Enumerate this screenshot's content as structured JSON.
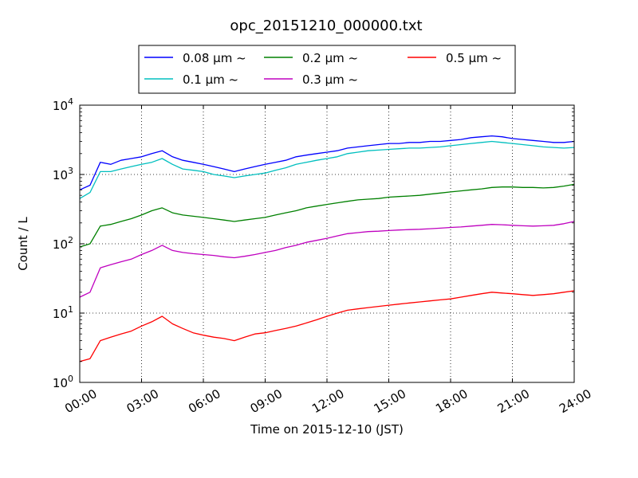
{
  "chart_data": {
    "type": "line",
    "title": "opc_20151210_000000.txt",
    "xlabel": "Time on 2015-12-10 (JST)",
    "ylabel": "Count / L",
    "yscale": "log",
    "ylim": [
      1,
      10000
    ],
    "xlim": [
      "00:00",
      "24:00"
    ],
    "grid": true,
    "legend_position": "top, above plot",
    "x_ticks": [
      "00:00",
      "03:00",
      "06:00",
      "09:00",
      "12:00",
      "15:00",
      "18:00",
      "21:00",
      "24:00"
    ],
    "y_ticks": [
      {
        "base": "10",
        "exp": "0"
      },
      {
        "base": "10",
        "exp": "1"
      },
      {
        "base": "10",
        "exp": "2"
      },
      {
        "base": "10",
        "exp": "3"
      },
      {
        "base": "10",
        "exp": "4"
      }
    ],
    "x_hours": [
      0,
      0.5,
      1,
      1.5,
      2,
      2.5,
      3,
      3.5,
      4,
      4.5,
      5,
      5.5,
      6,
      6.5,
      7,
      7.5,
      8,
      8.5,
      9,
      9.5,
      10,
      10.5,
      11,
      11.5,
      12,
      12.5,
      13,
      13.5,
      14,
      14.5,
      15,
      15.5,
      16,
      16.5,
      17,
      17.5,
      18,
      18.5,
      19,
      19.5,
      20,
      20.5,
      21,
      21.5,
      22,
      22.5,
      23,
      23.5,
      24
    ],
    "series": [
      {
        "name": "0.08 μm ~",
        "color": "#0000ff",
        "values": [
          600,
          700,
          1500,
          1400,
          1600,
          1700,
          1800,
          2000,
          2200,
          1800,
          1600,
          1500,
          1400,
          1300,
          1200,
          1100,
          1200,
          1300,
          1400,
          1500,
          1600,
          1800,
          1900,
          2000,
          2100,
          2200,
          2400,
          2500,
          2600,
          2700,
          2800,
          2800,
          2900,
          2900,
          3000,
          3000,
          3100,
          3200,
          3400,
          3500,
          3600,
          3500,
          3300,
          3200,
          3100,
          3000,
          2900,
          2900,
          3000
        ]
      },
      {
        "name": "0.1 μm ~",
        "color": "#00bfbf",
        "values": [
          450,
          550,
          1100,
          1100,
          1200,
          1300,
          1400,
          1500,
          1700,
          1400,
          1200,
          1150,
          1100,
          1000,
          950,
          900,
          950,
          1000,
          1050,
          1150,
          1250,
          1400,
          1500,
          1600,
          1700,
          1800,
          2000,
          2100,
          2200,
          2250,
          2300,
          2350,
          2400,
          2400,
          2450,
          2500,
          2600,
          2700,
          2800,
          2900,
          3000,
          2900,
          2800,
          2700,
          2600,
          2500,
          2450,
          2400,
          2450
        ]
      },
      {
        "name": "0.2 μm ~",
        "color": "#008000",
        "values": [
          90,
          100,
          180,
          190,
          210,
          230,
          260,
          300,
          330,
          280,
          260,
          250,
          240,
          230,
          220,
          210,
          220,
          230,
          240,
          260,
          280,
          300,
          330,
          350,
          370,
          390,
          410,
          430,
          440,
          450,
          470,
          480,
          490,
          500,
          520,
          540,
          560,
          580,
          600,
          620,
          650,
          660,
          660,
          650,
          650,
          640,
          650,
          680,
          720
        ]
      },
      {
        "name": "0.3 μm ~",
        "color": "#bf00bf",
        "values": [
          17,
          20,
          45,
          50,
          55,
          60,
          70,
          80,
          95,
          80,
          75,
          72,
          70,
          68,
          65,
          63,
          66,
          70,
          75,
          80,
          88,
          95,
          105,
          112,
          120,
          130,
          140,
          145,
          150,
          152,
          155,
          158,
          160,
          162,
          165,
          168,
          172,
          175,
          180,
          185,
          190,
          188,
          185,
          182,
          180,
          182,
          185,
          195,
          210
        ]
      },
      {
        "name": "0.5 μm ~",
        "color": "#ff0000",
        "values": [
          2,
          2.2,
          4,
          4.5,
          5,
          5.5,
          6.5,
          7.5,
          9,
          7,
          6,
          5.2,
          4.8,
          4.5,
          4.3,
          4,
          4.5,
          5,
          5.2,
          5.6,
          6,
          6.5,
          7.2,
          8,
          9,
          10,
          11,
          11.5,
          12,
          12.5,
          13,
          13.5,
          14,
          14.5,
          15,
          15.5,
          16,
          17,
          18,
          19,
          20,
          19.5,
          19,
          18.5,
          18,
          18.5,
          19,
          20,
          21
        ]
      }
    ]
  }
}
